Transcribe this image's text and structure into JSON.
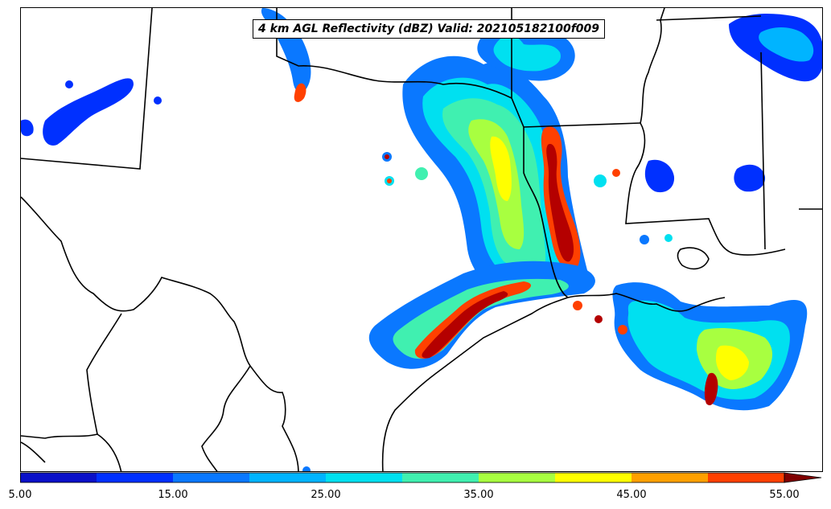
{
  "title": "4 km AGL Reflectivity (dBZ) Valid: 202105182100f009",
  "colorbar": {
    "tick_labels": [
      "5.00",
      "15.00",
      "25.00",
      "35.00",
      "45.00",
      "55.00"
    ],
    "tick_values": [
      5,
      15,
      25,
      35,
      45,
      55
    ],
    "levels": [
      5,
      10,
      15,
      20,
      25,
      30,
      35,
      40,
      45,
      50,
      55
    ],
    "colors": [
      "#0a10c8",
      "#0030ff",
      "#0a78ff",
      "#00b4ff",
      "#00e0f0",
      "#40f0b0",
      "#a8ff40",
      "#ffff00",
      "#ffa000",
      "#ff4000",
      "#b40000"
    ],
    "extend_color": "#800000",
    "extend": "max"
  },
  "map": {
    "region": "Texas / Gulf Coast",
    "variable": "reflectivity",
    "units": "dBZ",
    "boundaries_color": "#000000"
  }
}
